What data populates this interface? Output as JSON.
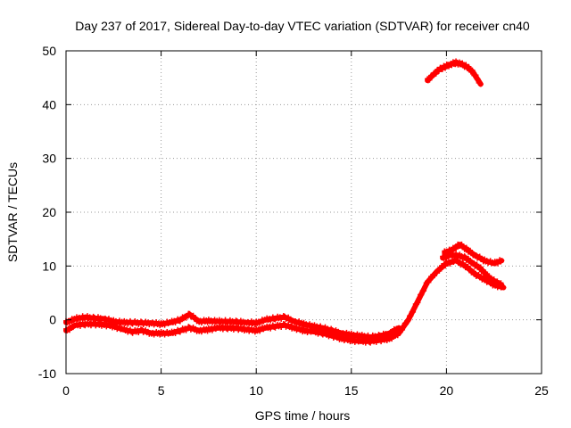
{
  "chart_data": {
    "type": "scatter",
    "title": "Day 237 of 2017, Sidereal Day-to-day VTEC variation (SDTVAR) for receiver cn40",
    "xlabel": "GPS time / hours",
    "ylabel": "SDTVAR / TECUs",
    "xlim": [
      0,
      25
    ],
    "ylim": [
      -10,
      50
    ],
    "xticks": [
      0,
      5,
      10,
      15,
      20,
      25
    ],
    "yticks": [
      -10,
      0,
      10,
      20,
      30,
      40,
      50
    ],
    "grid": true,
    "marker_color": "#ff0000",
    "series": [
      {
        "name": "band-lower",
        "x": [
          0.0,
          0.5,
          1.0,
          1.5,
          2.0,
          2.5,
          3.0,
          3.5,
          4.0,
          4.5,
          5.0,
          5.5,
          6.0,
          6.5,
          7.0,
          7.5,
          8.0,
          8.5,
          9.0,
          9.5,
          10.0,
          10.5,
          11.0,
          11.5,
          12.0,
          12.5,
          13.0,
          13.5,
          14.0,
          14.5,
          15.0,
          15.5,
          16.0,
          16.5,
          17.0,
          17.5,
          18.0,
          18.5,
          19.0,
          19.5,
          20.0,
          20.5,
          21.0,
          21.5,
          22.0,
          22.5,
          23.0
        ],
        "y": [
          -2.0,
          -1.0,
          -0.8,
          -0.8,
          -0.9,
          -1.2,
          -1.8,
          -2.2,
          -2.0,
          -2.5,
          -2.5,
          -2.5,
          -2.0,
          -1.5,
          -2.0,
          -1.8,
          -1.5,
          -1.5,
          -1.6,
          -1.8,
          -2.0,
          -1.5,
          -1.2,
          -1.0,
          -1.5,
          -2.0,
          -2.2,
          -2.5,
          -3.0,
          -3.5,
          -3.8,
          -4.0,
          -4.0,
          -3.8,
          -3.5,
          -2.5,
          0.0,
          3.5,
          7.0,
          9.0,
          10.5,
          11.0,
          10.0,
          8.5,
          7.5,
          6.5,
          6.0
        ]
      },
      {
        "name": "band-upper",
        "x": [
          0.0,
          0.5,
          1.0,
          1.5,
          2.0,
          2.5,
          3.0,
          3.5,
          4.0,
          4.5,
          5.0,
          5.5,
          6.0,
          6.5,
          7.0,
          7.5,
          8.0,
          8.5,
          9.0,
          9.5,
          10.0,
          10.5,
          11.0,
          11.5,
          12.0,
          12.5,
          13.0,
          13.5,
          14.0,
          14.5,
          15.0,
          15.5,
          16.0,
          16.5,
          17.0,
          17.5
        ],
        "y": [
          -0.5,
          0.2,
          0.5,
          0.3,
          0.2,
          -0.3,
          -0.5,
          -0.5,
          -0.6,
          -0.6,
          -0.8,
          -0.5,
          0.0,
          1.0,
          -0.3,
          -0.2,
          -0.3,
          -0.3,
          -0.4,
          -0.5,
          -0.6,
          0.0,
          0.3,
          0.5,
          -0.3,
          -0.8,
          -1.2,
          -1.5,
          -2.0,
          -2.5,
          -2.8,
          -3.0,
          -3.2,
          -3.0,
          -2.5,
          -1.5
        ]
      },
      {
        "name": "arc-upper",
        "x": [
          19.9,
          20.3,
          20.7,
          21.1,
          21.5,
          22.0,
          22.5,
          22.9
        ],
        "y": [
          12.5,
          13.0,
          14.0,
          13.0,
          12.0,
          11.0,
          10.5,
          11.0
        ]
      },
      {
        "name": "arc-middle",
        "x": [
          19.8,
          20.2,
          20.6,
          21.0,
          21.4,
          21.8,
          22.2,
          22.6,
          22.9
        ],
        "y": [
          11.5,
          12.0,
          12.0,
          11.5,
          10.5,
          9.5,
          8.0,
          7.0,
          6.5
        ]
      },
      {
        "name": "arc-high",
        "x": [
          19.0,
          19.3,
          19.6,
          19.9,
          20.2,
          20.5,
          20.8,
          21.1,
          21.4,
          21.8
        ],
        "y": [
          44.5,
          45.5,
          46.5,
          47.0,
          47.5,
          47.8,
          47.5,
          47.0,
          46.0,
          43.8
        ]
      }
    ]
  }
}
